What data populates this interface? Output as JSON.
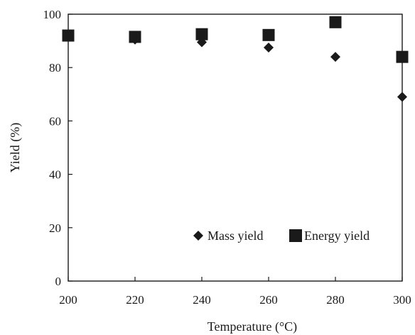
{
  "chart_data": {
    "type": "scatter",
    "title": "",
    "xlabel": "Temperature (°C)",
    "ylabel": "Yield (%)",
    "xlim": [
      200,
      300
    ],
    "ylim": [
      0,
      100
    ],
    "xticks": [
      200,
      220,
      240,
      260,
      280,
      300
    ],
    "yticks": [
      0,
      20,
      40,
      60,
      80,
      100
    ],
    "grid": false,
    "legend_position": "bottom-right",
    "series": [
      {
        "name": "Mass yield",
        "marker": "diamond",
        "color": "#1a1a1a",
        "x": [
          200,
          220,
          240,
          260,
          280,
          300
        ],
        "y": [
          92,
          90.5,
          89.5,
          87.5,
          84,
          69
        ]
      },
      {
        "name": "Energy yield",
        "marker": "square",
        "color": "#1a1a1a",
        "x": [
          200,
          220,
          240,
          260,
          280,
          300
        ],
        "y": [
          92,
          91.5,
          92.5,
          92.2,
          97,
          84
        ]
      }
    ]
  }
}
